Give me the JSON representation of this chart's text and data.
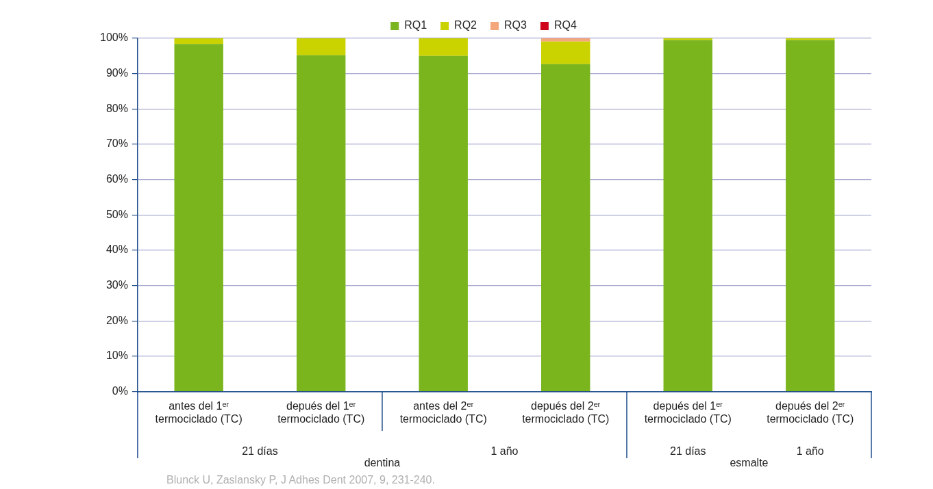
{
  "chart_data": {
    "type": "bar",
    "stacked": true,
    "categories": [
      "antes del 1ᵉʳ termociclado (TC)",
      "depués del 1ᵉʳ termociclado (TC)",
      "antes del 2ᵉʳ termociclado (TC)",
      "depués del 2ᵉʳ termociclado (TC)",
      "depués del 1ᵉʳ termociclado (TC)",
      "depués del 2ᵉʳ termociclado (TC)"
    ],
    "series": [
      {
        "name": "RQ1",
        "color": "#7ab51d",
        "values": [
          98.4,
          95.2,
          95.0,
          92.7,
          99.5,
          99.5
        ]
      },
      {
        "name": "RQ2",
        "color": "#cad200",
        "values": [
          1.6,
          4.8,
          5.0,
          6.4,
          0.5,
          0.5
        ]
      },
      {
        "name": "RQ3",
        "color": "#f4a77a",
        "values": [
          0,
          0,
          0,
          0.9,
          0,
          0
        ]
      },
      {
        "name": "RQ4",
        "color": "#d0021b",
        "values": [
          0,
          0,
          0,
          0,
          0,
          0
        ]
      }
    ],
    "ylim": [
      0,
      100
    ],
    "yticks": [
      {
        "value": 0,
        "label": "0%"
      },
      {
        "value": 10,
        "label": "10%"
      },
      {
        "value": 20,
        "label": "20%"
      },
      {
        "value": 30,
        "label": "30%"
      },
      {
        "value": 40,
        "label": "40%"
      },
      {
        "value": 50,
        "label": "50%"
      },
      {
        "value": 60,
        "label": "60%"
      },
      {
        "value": 70,
        "label": "70%"
      },
      {
        "value": 80,
        "label": "80%"
      },
      {
        "value": 90,
        "label": "90%"
      },
      {
        "value": 100,
        "label": "100%"
      }
    ],
    "grid": "y",
    "legend": "top",
    "annotations": [
      "21 días",
      "1 año",
      "21 días",
      "1 año",
      "dentina",
      "esmalte",
      "Blunck U, Zaslansky P, J Adhes Dent 2007, 9, 231-240."
    ]
  }
}
